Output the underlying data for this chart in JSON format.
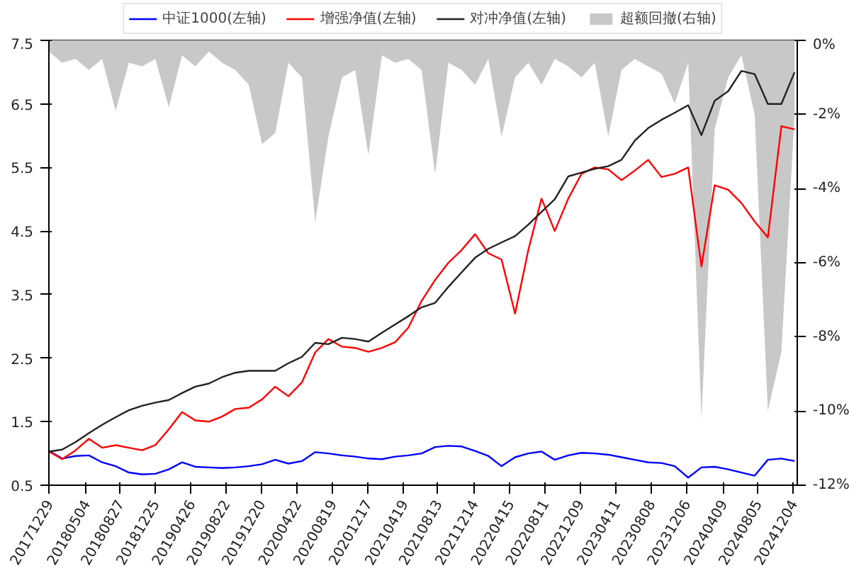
{
  "chart_data": {
    "type": "line",
    "x": [
      "2017-12-29",
      "2018-02-12",
      "2018-03-30",
      "2018-05-14",
      "2018-06-28",
      "2018-08-13",
      "2018-09-27",
      "2018-11-11",
      "2018-12-26",
      "2019-02-10",
      "2019-03-27",
      "2019-05-11",
      "2019-06-26",
      "2019-08-10",
      "2019-09-24",
      "2019-11-09",
      "2019-12-24",
      "2020-02-07",
      "2020-03-23",
      "2020-05-08",
      "2020-06-22",
      "2020-08-06",
      "2020-09-21",
      "2020-11-05",
      "2020-12-20",
      "2021-02-04",
      "2021-03-21",
      "2021-05-05",
      "2021-06-19",
      "2021-08-04",
      "2021-09-18",
      "2021-11-02",
      "2021-12-18",
      "2022-02-01",
      "2022-03-18",
      "2022-05-03",
      "2022-06-17",
      "2022-08-01",
      "2022-09-15",
      "2022-10-31",
      "2022-12-15",
      "2023-01-29",
      "2023-03-16",
      "2023-04-30",
      "2023-06-14",
      "2023-07-30",
      "2023-09-13",
      "2023-10-28",
      "2023-12-13",
      "2024-01-27",
      "2024-03-12",
      "2024-04-27",
      "2024-06-11",
      "2024-07-26",
      "2024-09-09",
      "2024-10-25",
      "2024-12-09"
    ],
    "series": [
      {
        "name": "中证1000(左轴)",
        "color": "#0000ff",
        "values": [
          1.04,
          0.92,
          0.96,
          0.97,
          0.86,
          0.8,
          0.7,
          0.67,
          0.68,
          0.75,
          0.86,
          0.79,
          0.78,
          0.77,
          0.78,
          0.8,
          0.83,
          0.9,
          0.84,
          0.88,
          1.02,
          1.0,
          0.97,
          0.95,
          0.92,
          0.91,
          0.95,
          0.97,
          1.0,
          1.1,
          1.12,
          1.11,
          1.04,
          0.96,
          0.8,
          0.94,
          1.0,
          1.03,
          0.9,
          0.97,
          1.01,
          1.0,
          0.98,
          0.94,
          0.9,
          0.86,
          0.85,
          0.8,
          0.62,
          0.78,
          0.79,
          0.75,
          0.7,
          0.65,
          0.9,
          0.92,
          0.88
        ]
      },
      {
        "name": "增强净值(左轴)",
        "color": "#ff0000",
        "values": [
          1.03,
          0.91,
          1.05,
          1.23,
          1.09,
          1.13,
          1.09,
          1.05,
          1.13,
          1.38,
          1.65,
          1.52,
          1.5,
          1.58,
          1.7,
          1.72,
          1.85,
          2.05,
          1.9,
          2.12,
          2.59,
          2.8,
          2.68,
          2.66,
          2.6,
          2.66,
          2.75,
          2.98,
          3.4,
          3.73,
          4.0,
          4.2,
          4.45,
          4.15,
          4.05,
          3.2,
          4.2,
          5.01,
          4.5,
          5.01,
          5.4,
          5.5,
          5.47,
          5.3,
          5.45,
          5.62,
          5.35,
          5.4,
          5.5,
          3.94,
          5.22,
          5.15,
          4.94,
          4.65,
          4.4,
          6.15,
          6.1
        ]
      },
      {
        "name": "对冲净值(左轴)",
        "color": "#222222",
        "values": [
          1.03,
          1.06,
          1.18,
          1.32,
          1.45,
          1.57,
          1.68,
          1.75,
          1.8,
          1.84,
          1.95,
          2.05,
          2.1,
          2.2,
          2.27,
          2.3,
          2.3,
          2.3,
          2.42,
          2.52,
          2.74,
          2.72,
          2.82,
          2.8,
          2.76,
          2.9,
          3.03,
          3.16,
          3.3,
          3.37,
          3.62,
          3.85,
          4.08,
          4.22,
          4.32,
          4.42,
          4.6,
          4.8,
          5.0,
          5.36,
          5.42,
          5.48,
          5.52,
          5.62,
          5.92,
          6.12,
          6.25,
          6.36,
          6.48,
          6.01,
          6.55,
          6.7,
          7.02,
          6.97,
          6.5,
          6.5,
          7.0
        ]
      },
      {
        "name": "超额回撤(右轴)",
        "type": "area",
        "axis": "y2",
        "color": "#c8c8c8",
        "values": [
          -0.3,
          -0.6,
          -0.5,
          -0.8,
          -0.5,
          -1.9,
          -0.6,
          -0.7,
          -0.5,
          -1.8,
          -0.4,
          -0.7,
          -0.3,
          -0.6,
          -0.8,
          -1.2,
          -2.8,
          -2.5,
          -0.6,
          -1.0,
          -4.9,
          -2.6,
          -1.0,
          -0.8,
          -3.1,
          -0.4,
          -0.6,
          -0.5,
          -0.8,
          -3.6,
          -0.6,
          -0.8,
          -1.2,
          -0.5,
          -2.6,
          -1.0,
          -0.6,
          -1.2,
          -0.5,
          -0.7,
          -1.0,
          -0.6,
          -2.6,
          -0.8,
          -0.5,
          -0.7,
          -0.9,
          -1.7,
          -0.6,
          -10.2,
          -2.4,
          -1.0,
          -0.4,
          -2.0,
          -10.0,
          -8.4,
          -2.0
        ]
      }
    ],
    "xlim": [
      "2017-12-29",
      "2024-12-18"
    ],
    "xticks": [
      {
        "value": "2017-12-29",
        "label": "20171229"
      },
      {
        "value": "2018-05-04",
        "label": "20180504"
      },
      {
        "value": "2018-08-27",
        "label": "20180827"
      },
      {
        "value": "2018-12-25",
        "label": "20181225"
      },
      {
        "value": "2019-04-26",
        "label": "20190426"
      },
      {
        "value": "2019-08-22",
        "label": "20190822"
      },
      {
        "value": "2019-12-20",
        "label": "20191220"
      },
      {
        "value": "2020-04-22",
        "label": "20200422"
      },
      {
        "value": "2020-08-19",
        "label": "20200819"
      },
      {
        "value": "2020-12-17",
        "label": "20201217"
      },
      {
        "value": "2021-04-19",
        "label": "20210419"
      },
      {
        "value": "2021-08-13",
        "label": "20210813"
      },
      {
        "value": "2021-12-14",
        "label": "20211214"
      },
      {
        "value": "2022-04-15",
        "label": "20220415"
      },
      {
        "value": "2022-08-11",
        "label": "20220811"
      },
      {
        "value": "2022-12-09",
        "label": "20221209"
      },
      {
        "value": "2023-04-11",
        "label": "20230411"
      },
      {
        "value": "2023-08-08",
        "label": "20230808"
      },
      {
        "value": "2023-12-06",
        "label": "20231206"
      },
      {
        "value": "2024-04-09",
        "label": "20240409"
      },
      {
        "value": "2024-08-05",
        "label": "20240805"
      },
      {
        "value": "2024-12-04",
        "label": "20241204"
      }
    ],
    "ylim": [
      0.5,
      7.5
    ],
    "yticks": [
      0.5,
      1.5,
      2.5,
      3.5,
      4.5,
      5.5,
      6.5,
      7.5
    ],
    "y2lim": [
      -12,
      0
    ],
    "y2ticks": [
      {
        "value": 0,
        "label": "0%"
      },
      {
        "value": -2,
        "label": "-2%"
      },
      {
        "value": -4,
        "label": "-4%"
      },
      {
        "value": -6,
        "label": "-6%"
      },
      {
        "value": -8,
        "label": "-8%"
      },
      {
        "value": -10,
        "label": "-10%"
      },
      {
        "value": -12,
        "label": "-12%"
      }
    ],
    "legend": "top",
    "grid": false
  }
}
